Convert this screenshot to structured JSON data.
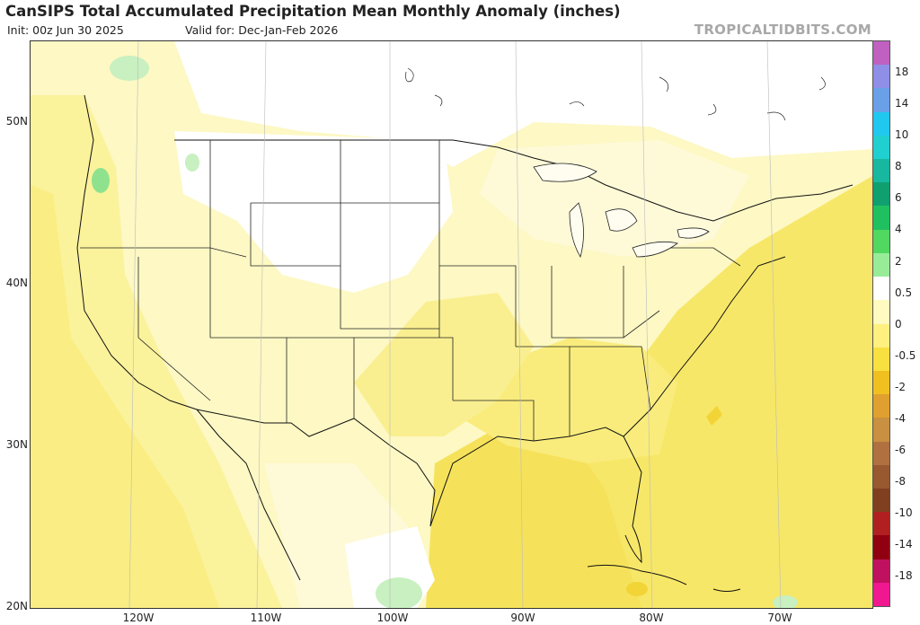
{
  "header": {
    "title": "CanSIPS Total Accumulated Precipitation Mean Monthly Anomaly (inches)",
    "init": "Init: 00z Jun 30 2025",
    "valid": "Valid for: Dec-Jan-Feb 2026",
    "brand": "TROPICALTIDBITS.COM"
  },
  "map": {
    "lat_labels": [
      "50N",
      "40N",
      "30N",
      "20N"
    ],
    "lon_labels": [
      "120W",
      "110W",
      "100W",
      "90W",
      "80W",
      "70W"
    ]
  },
  "colorbar": {
    "labels": [
      "18",
      "14",
      "10",
      "8",
      "6",
      "4",
      "2",
      "0.5",
      "0",
      "-0.5",
      "-2",
      "-4",
      "-6",
      "-8",
      "-10",
      "-14",
      "-18"
    ],
    "colors": [
      "#c060c0",
      "#8f8fe8",
      "#6aa0e8",
      "#20c8f0",
      "#20d0d0",
      "#18b8a0",
      "#10a070",
      "#20c060",
      "#50d860",
      "#98ec98",
      "#ffffff",
      "#fffac0",
      "#fff080",
      "#f8e040",
      "#f0c020",
      "#e0a030",
      "#c89040",
      "#b07040",
      "#985830",
      "#804020",
      "#b02020",
      "#900010",
      "#c01060",
      "#f01890"
    ]
  },
  "anomaly_field": {
    "region_colors": {
      "ocean_atlantic": "#f7e768",
      "ocean_gulf": "#f7e768",
      "pacific_coast": "#fbf29c",
      "interior_light": "#fdf8c4",
      "dry_neutral": "#ffffff",
      "wet_light": "#c8f0c0",
      "wet_green": "#8ee28e",
      "strong_dry": "#f2d436"
    }
  }
}
